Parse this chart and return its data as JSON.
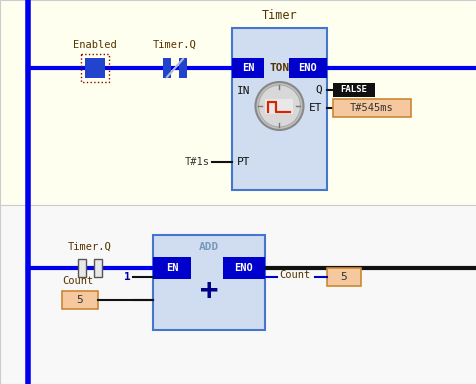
{
  "bg_top_color": "#fffff0",
  "bg_bot_color": "#f8f8f8",
  "rail_blue": "#0000ee",
  "wire_black": "#111111",
  "title_timer": "Timer",
  "ton_label": "TON",
  "add_label": "ADD",
  "en_label": "EN",
  "eno_label": "ENO",
  "q_label": "Q",
  "et_text": "ET",
  "in_label": "IN",
  "pt_text": "PT",
  "enabled_label": "Enabled",
  "timerq_label1": "Timer.Q",
  "timerq_label2": "Timer.Q",
  "false_label": "FALSE",
  "et_label": "T#545ms",
  "pt_label": "T#1s",
  "count_label1": "Count",
  "count_label2": "Count",
  "count_val1": "5",
  "count_val2": "5",
  "one_label": "1",
  "dark_blue": "#0000aa",
  "box_face": "#d0ddf0",
  "box_border": "#4477cc",
  "en_bar_color": "#0000cc",
  "false_bg": "#111111",
  "et_box_face": "#f5c8a0",
  "et_box_edge": "#cc8833",
  "count_box_face": "#f5c8a0",
  "count_box_edge": "#cc8833"
}
